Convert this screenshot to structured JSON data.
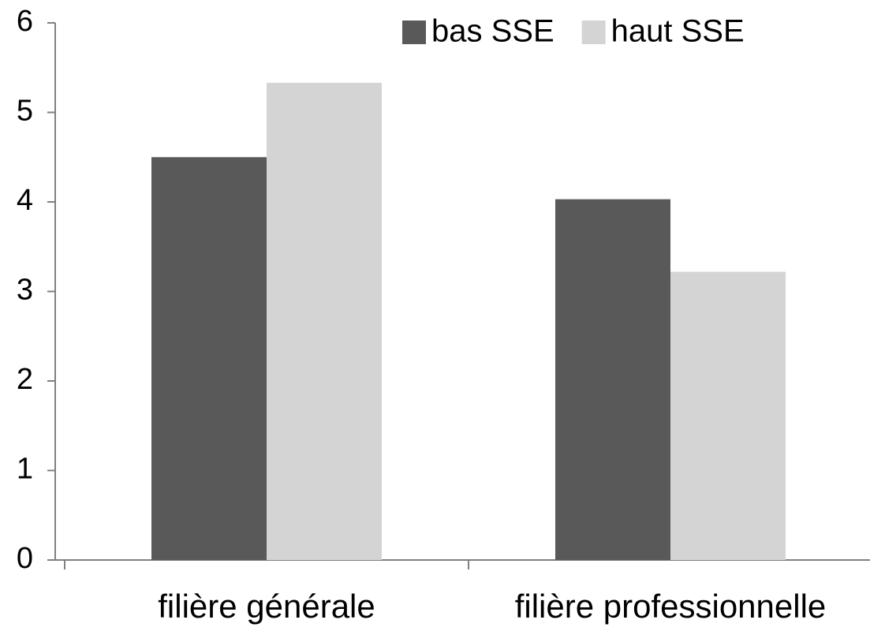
{
  "chart_data": {
    "type": "bar",
    "categories": [
      "filière générale",
      "filière professionnelle"
    ],
    "series": [
      {
        "name": "bas SSE",
        "color": "#595959",
        "values": [
          4.5,
          4.03
        ]
      },
      {
        "name": "haut SSE",
        "color": "#d4d4d4",
        "values": [
          5.33,
          3.22
        ]
      }
    ],
    "ylim": [
      0,
      6
    ],
    "yticks": [
      0,
      1,
      2,
      3,
      4,
      5,
      6
    ],
    "grid": false,
    "legend": "top-right"
  }
}
